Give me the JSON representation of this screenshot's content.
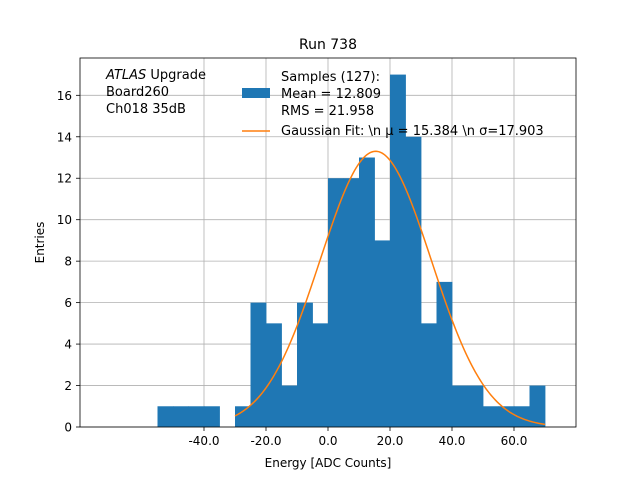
{
  "chart_data": {
    "type": "bar",
    "title": "Run 738",
    "xlabel": "Energy [ADC Counts]",
    "ylabel": "Entries",
    "xlim": [
      -80,
      80
    ],
    "ylim": [
      0,
      17.8
    ],
    "grid": true,
    "x_ticks": [
      -40,
      -20,
      0,
      20,
      40,
      60
    ],
    "x_tick_labels": [
      "-40.0",
      "-20.0",
      "0.0",
      "20.0",
      "40.0",
      "60.0"
    ],
    "y_ticks": [
      0,
      2,
      4,
      6,
      8,
      10,
      12,
      14,
      16
    ],
    "y_tick_labels": [
      "0",
      "2",
      "4",
      "6",
      "8",
      "10",
      "12",
      "14",
      "16"
    ],
    "bar_color": "#1f77b4",
    "fit_color": "#ff7f0e",
    "bin_edges": [
      -55,
      -50,
      -45,
      -40,
      -35,
      -30,
      -25,
      -20,
      -15,
      -10,
      -5,
      0,
      5,
      10,
      15,
      20,
      25,
      30,
      35,
      40,
      45,
      50,
      55,
      60,
      65,
      70
    ],
    "counts": [
      1,
      1,
      1,
      1,
      0,
      1,
      6,
      5,
      2,
      6,
      5,
      12,
      12,
      13,
      9,
      17,
      14,
      5,
      7,
      2,
      2,
      1,
      1,
      1,
      2
    ],
    "fit": {
      "amplitude": 13.3,
      "mu": 15.384,
      "sigma": 17.903,
      "x_range": [
        -30,
        70
      ]
    },
    "annotation": {
      "lines": [
        {
          "italic": "ATLAS",
          "rest": " Upgrade"
        },
        {
          "italic": "",
          "rest": " Board260"
        },
        {
          "italic": "",
          "rest": " Ch018 35dB"
        }
      ]
    },
    "legend": {
      "placement": "top-right",
      "entries": [
        {
          "kind": "bar",
          "lines": [
            "Samples (127):",
            " Mean = 12.809",
            " RMS = 21.958"
          ]
        },
        {
          "kind": "line",
          "lines": [
            "Gaussian Fit: \\n μ = 15.384 \\n σ=17.903"
          ]
        }
      ]
    }
  }
}
